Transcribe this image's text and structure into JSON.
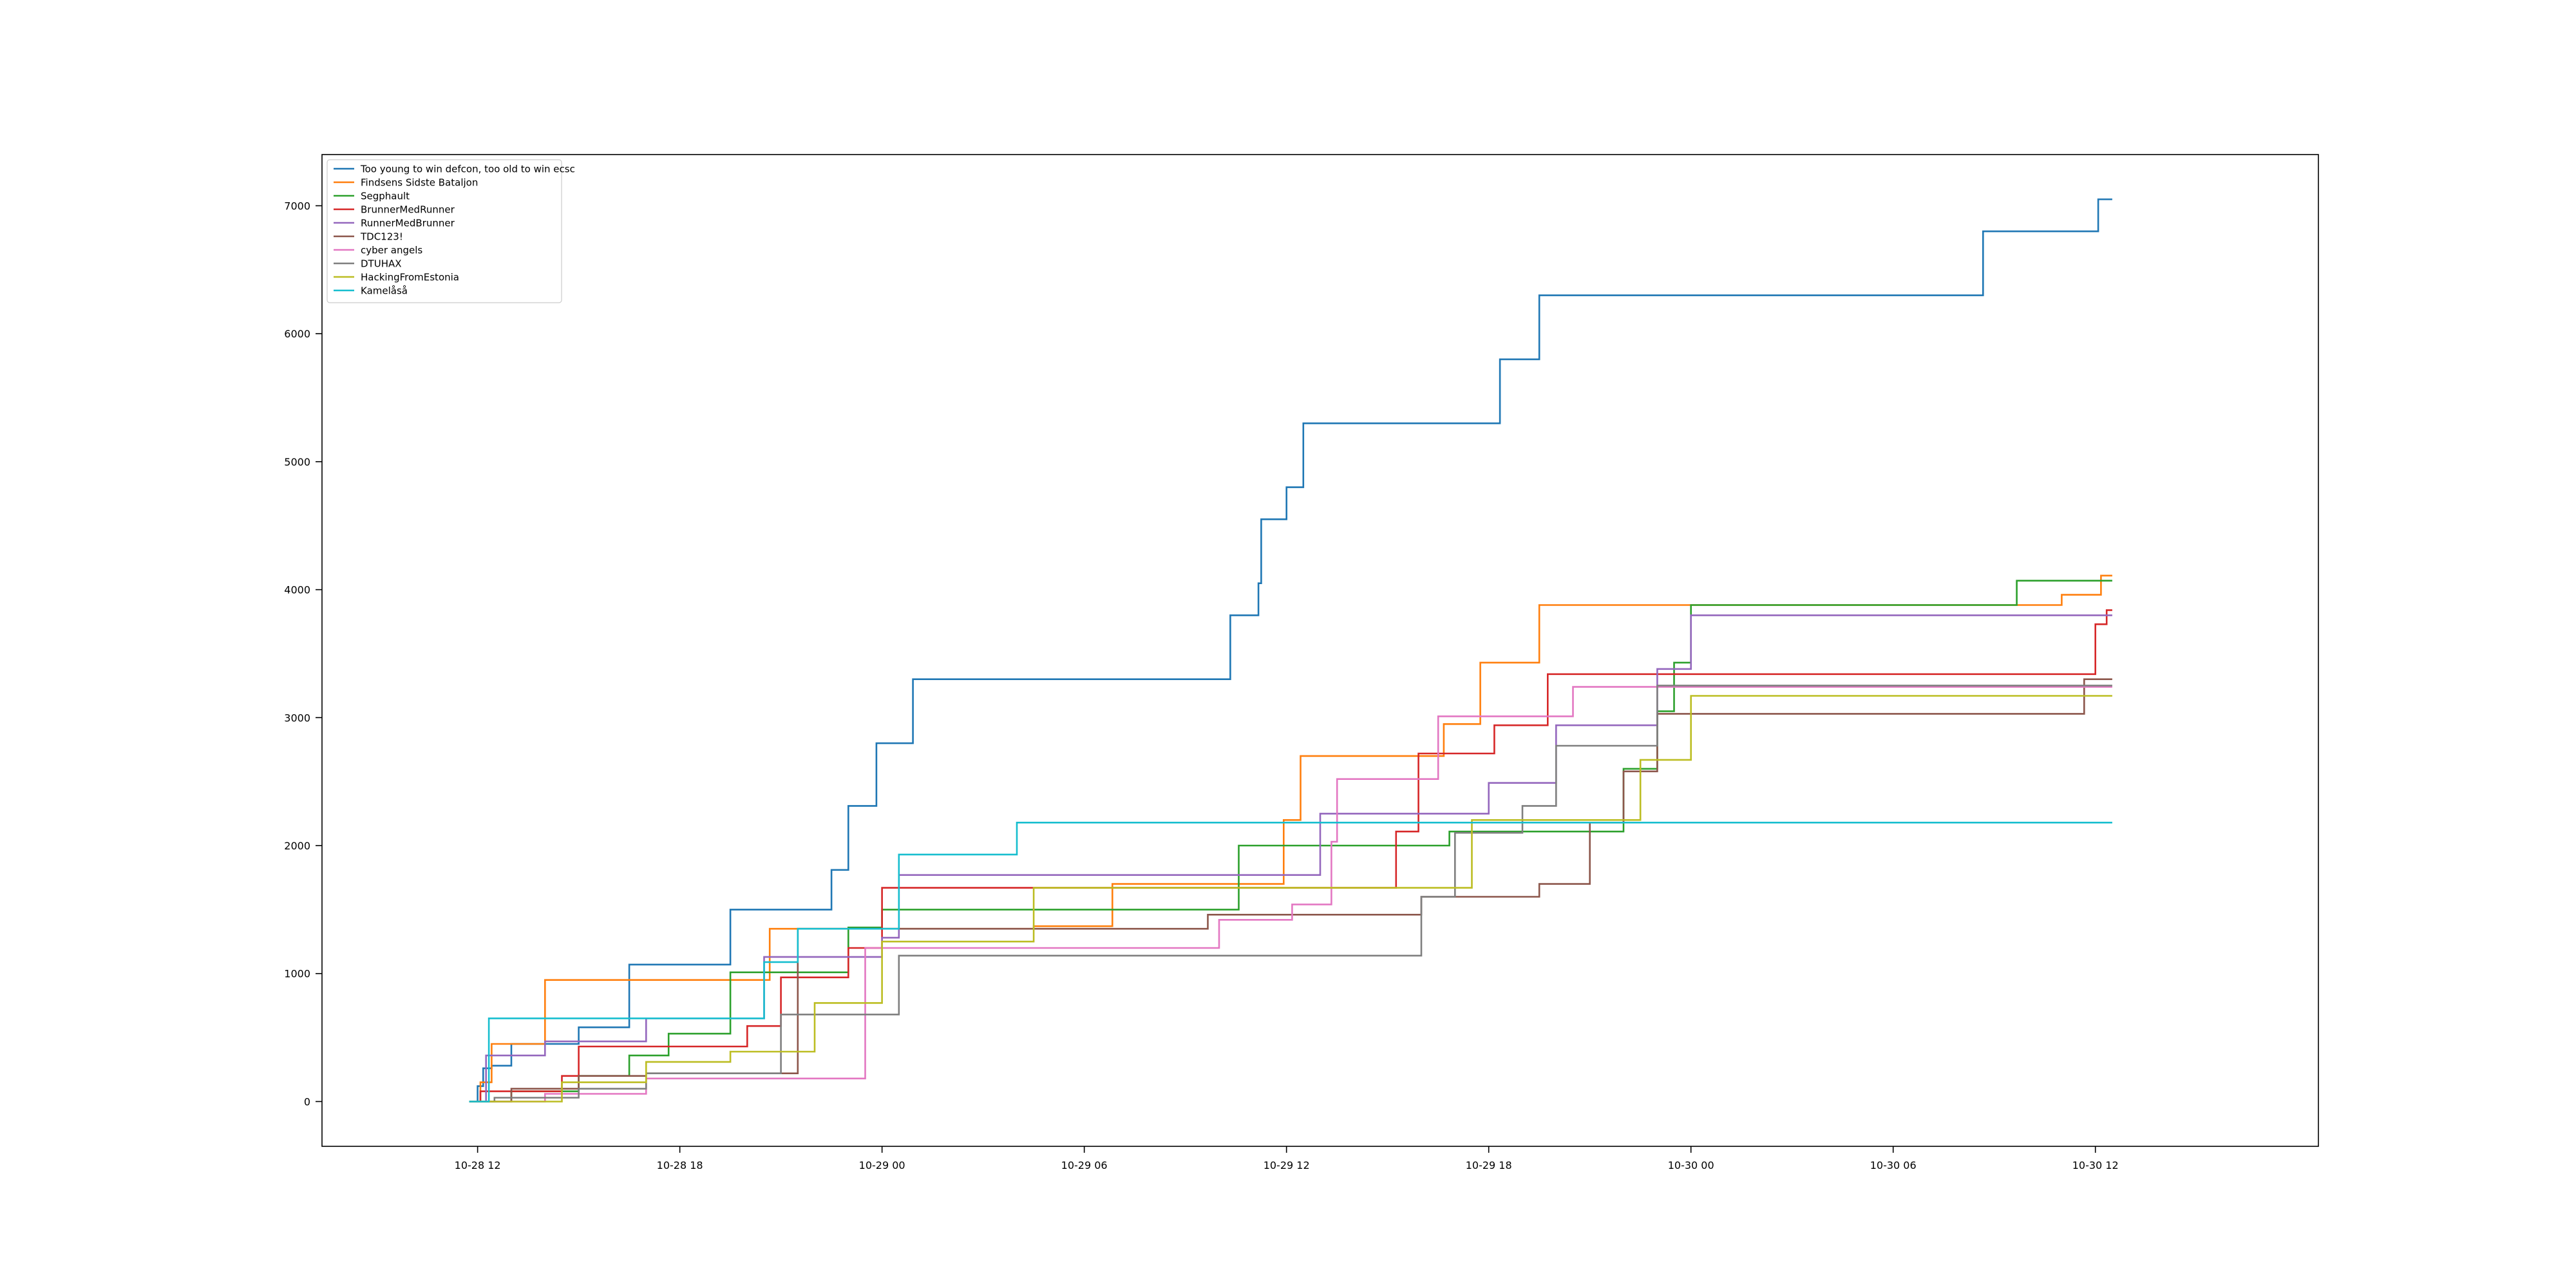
{
  "chart_data": {
    "type": "line",
    "step": true,
    "title": "",
    "xlabel": "",
    "ylabel": "",
    "xlim": [
      "2023-10-28T07:23",
      "2023-10-30T18:37"
    ],
    "ylim": [
      -350,
      7400
    ],
    "grid": false,
    "legend_position": "top-left",
    "x_ticks": [
      {
        "t": "2023-10-28T12:00",
        "label": "10-28 12"
      },
      {
        "t": "2023-10-28T18:00",
        "label": "10-28 18"
      },
      {
        "t": "2023-10-29T00:00",
        "label": "10-29 00"
      },
      {
        "t": "2023-10-29T06:00",
        "label": "10-29 06"
      },
      {
        "t": "2023-10-29T12:00",
        "label": "10-29 12"
      },
      {
        "t": "2023-10-29T18:00",
        "label": "10-29 18"
      },
      {
        "t": "2023-10-30T00:00",
        "label": "10-30 00"
      },
      {
        "t": "2023-10-30T06:00",
        "label": "10-30 06"
      },
      {
        "t": "2023-10-30T12:00",
        "label": "10-30 12"
      }
    ],
    "y_ticks": [
      0,
      1000,
      2000,
      3000,
      4000,
      5000,
      6000,
      7000
    ],
    "series": [
      {
        "name": "Too young to win defcon, too old to win ecsc",
        "color": "#1f77b4",
        "points": [
          [
            "2023-10-28T11:45",
            0
          ],
          [
            "2023-10-28T12:00",
            120
          ],
          [
            "2023-10-28T12:10",
            260
          ],
          [
            "2023-10-28T12:25",
            280
          ],
          [
            "2023-10-28T13:00",
            450
          ],
          [
            "2023-10-28T15:00",
            580
          ],
          [
            "2023-10-28T16:30",
            1070
          ],
          [
            "2023-10-28T19:30",
            1500
          ],
          [
            "2023-10-28T22:30",
            1810
          ],
          [
            "2023-10-28T23:00",
            2310
          ],
          [
            "2023-10-28T23:50",
            2800
          ],
          [
            "2023-10-29T00:55",
            3300
          ],
          [
            "2023-10-29T10:20",
            3800
          ],
          [
            "2023-10-29T11:10",
            4050
          ],
          [
            "2023-10-29T11:15",
            4550
          ],
          [
            "2023-10-29T12:00",
            4800
          ],
          [
            "2023-10-29T12:30",
            5300
          ],
          [
            "2023-10-29T18:20",
            5800
          ],
          [
            "2023-10-29T19:30",
            6300
          ],
          [
            "2023-10-30T08:40",
            6800
          ],
          [
            "2023-10-30T12:05",
            7050
          ],
          [
            "2023-10-30T12:30",
            7050
          ]
        ]
      },
      {
        "name": "Findsens Sidste Bataljon",
        "color": "#ff7f0e",
        "points": [
          [
            "2023-10-28T11:45",
            0
          ],
          [
            "2023-10-28T12:05",
            150
          ],
          [
            "2023-10-28T12:25",
            450
          ],
          [
            "2023-10-28T14:00",
            950
          ],
          [
            "2023-10-28T20:40",
            1350
          ],
          [
            "2023-10-29T04:30",
            1370
          ],
          [
            "2023-10-29T06:50",
            1700
          ],
          [
            "2023-10-29T11:55",
            2200
          ],
          [
            "2023-10-29T12:25",
            2700
          ],
          [
            "2023-10-29T16:40",
            2950
          ],
          [
            "2023-10-29T17:45",
            3430
          ],
          [
            "2023-10-29T19:30",
            3880
          ],
          [
            "2023-10-30T11:00",
            3960
          ],
          [
            "2023-10-30T12:10",
            4110
          ],
          [
            "2023-10-30T12:30",
            4110
          ]
        ]
      },
      {
        "name": "Segphault",
        "color": "#2ca02c",
        "points": [
          [
            "2023-10-28T11:45",
            0
          ],
          [
            "2023-10-28T13:00",
            80
          ],
          [
            "2023-10-28T15:00",
            200
          ],
          [
            "2023-10-28T16:30",
            360
          ],
          [
            "2023-10-28T17:40",
            530
          ],
          [
            "2023-10-28T19:30",
            1010
          ],
          [
            "2023-10-28T23:00",
            1360
          ],
          [
            "2023-10-29T00:00",
            1500
          ],
          [
            "2023-10-29T10:35",
            2000
          ],
          [
            "2023-10-29T16:50",
            2110
          ],
          [
            "2023-10-29T22:00",
            2600
          ],
          [
            "2023-10-29T23:00",
            3050
          ],
          [
            "2023-10-29T23:30",
            3430
          ],
          [
            "2023-10-30T00:00",
            3880
          ],
          [
            "2023-10-30T09:40",
            4070
          ],
          [
            "2023-10-30T12:30",
            4070
          ]
        ]
      },
      {
        "name": "BrunnerMedRunner",
        "color": "#d62728",
        "points": [
          [
            "2023-10-28T11:45",
            0
          ],
          [
            "2023-10-28T12:05",
            80
          ],
          [
            "2023-10-28T14:30",
            200
          ],
          [
            "2023-10-28T15:00",
            430
          ],
          [
            "2023-10-28T20:00",
            590
          ],
          [
            "2023-10-28T21:00",
            970
          ],
          [
            "2023-10-28T23:00",
            1200
          ],
          [
            "2023-10-29T00:00",
            1670
          ],
          [
            "2023-10-29T15:15",
            2110
          ],
          [
            "2023-10-29T15:55",
            2720
          ],
          [
            "2023-10-29T18:10",
            2940
          ],
          [
            "2023-10-29T19:45",
            3340
          ],
          [
            "2023-10-30T11:45",
            3340
          ],
          [
            "2023-10-30T12:00",
            3730
          ],
          [
            "2023-10-30T12:20",
            3840
          ],
          [
            "2023-10-30T12:30",
            3840
          ]
        ]
      },
      {
        "name": "RunnerMedBrunner",
        "color": "#9467bd",
        "points": [
          [
            "2023-10-28T11:45",
            0
          ],
          [
            "2023-10-28T12:15",
            360
          ],
          [
            "2023-10-28T14:00",
            470
          ],
          [
            "2023-10-28T17:00",
            650
          ],
          [
            "2023-10-28T20:30",
            1130
          ],
          [
            "2023-10-29T00:00",
            1280
          ],
          [
            "2023-10-29T00:30",
            1770
          ],
          [
            "2023-10-29T13:00",
            2250
          ],
          [
            "2023-10-29T18:00",
            2490
          ],
          [
            "2023-10-29T20:00",
            2940
          ],
          [
            "2023-10-29T23:00",
            3380
          ],
          [
            "2023-10-30T00:00",
            3800
          ],
          [
            "2023-10-30T12:30",
            3800
          ]
        ]
      },
      {
        "name": "TDC123!",
        "color": "#8c564b",
        "points": [
          [
            "2023-10-28T11:45",
            0
          ],
          [
            "2023-10-28T13:00",
            100
          ],
          [
            "2023-10-28T15:00",
            200
          ],
          [
            "2023-10-28T17:00",
            220
          ],
          [
            "2023-10-28T21:30",
            1350
          ],
          [
            "2023-10-29T09:40",
            1460
          ],
          [
            "2023-10-29T16:00",
            1600
          ],
          [
            "2023-10-29T19:30",
            1700
          ],
          [
            "2023-10-29T21:00",
            2180
          ],
          [
            "2023-10-29T22:00",
            2580
          ],
          [
            "2023-10-29T23:00",
            3030
          ],
          [
            "2023-10-30T11:40",
            3300
          ],
          [
            "2023-10-30T12:30",
            3300
          ]
        ]
      },
      {
        "name": "cyber angels",
        "color": "#e377c2",
        "points": [
          [
            "2023-10-28T11:45",
            0
          ],
          [
            "2023-10-28T14:00",
            60
          ],
          [
            "2023-10-28T17:00",
            180
          ],
          [
            "2023-10-28T23:30",
            1200
          ],
          [
            "2023-10-29T10:00",
            1420
          ],
          [
            "2023-10-29T12:10",
            1540
          ],
          [
            "2023-10-29T13:20",
            2030
          ],
          [
            "2023-10-29T13:30",
            2520
          ],
          [
            "2023-10-29T16:30",
            3010
          ],
          [
            "2023-10-29T20:30",
            3240
          ],
          [
            "2023-10-30T12:30",
            3240
          ]
        ]
      },
      {
        "name": "DTUHAX",
        "color": "#7f7f7f",
        "points": [
          [
            "2023-10-28T11:45",
            0
          ],
          [
            "2023-10-28T12:30",
            30
          ],
          [
            "2023-10-28T15:00",
            100
          ],
          [
            "2023-10-28T17:00",
            220
          ],
          [
            "2023-10-28T21:00",
            680
          ],
          [
            "2023-10-29T00:30",
            1140
          ],
          [
            "2023-10-29T15:30",
            1140
          ],
          [
            "2023-10-29T16:00",
            1600
          ],
          [
            "2023-10-29T17:00",
            2100
          ],
          [
            "2023-10-29T19:00",
            2310
          ],
          [
            "2023-10-29T20:00",
            2780
          ],
          [
            "2023-10-29T23:00",
            3250
          ],
          [
            "2023-10-30T12:30",
            3250
          ]
        ]
      },
      {
        "name": "HackingFromEstonia",
        "color": "#bcbd22",
        "points": [
          [
            "2023-10-28T11:45",
            0
          ],
          [
            "2023-10-28T14:30",
            150
          ],
          [
            "2023-10-28T17:00",
            310
          ],
          [
            "2023-10-28T19:30",
            390
          ],
          [
            "2023-10-28T22:00",
            770
          ],
          [
            "2023-10-29T00:00",
            1250
          ],
          [
            "2023-10-29T04:30",
            1670
          ],
          [
            "2023-10-29T17:30",
            2200
          ],
          [
            "2023-10-29T22:30",
            2670
          ],
          [
            "2023-10-30T00:00",
            3170
          ],
          [
            "2023-10-30T12:30",
            3170
          ]
        ]
      },
      {
        "name": "Kamelåså",
        "color": "#17becf",
        "points": [
          [
            "2023-10-28T11:45",
            0
          ],
          [
            "2023-10-28T12:20",
            650
          ],
          [
            "2023-10-28T20:30",
            1090
          ],
          [
            "2023-10-28T21:30",
            1350
          ],
          [
            "2023-10-29T00:30",
            1930
          ],
          [
            "2023-10-29T04:00",
            2180
          ],
          [
            "2023-10-30T12:30",
            2180
          ]
        ]
      }
    ]
  }
}
